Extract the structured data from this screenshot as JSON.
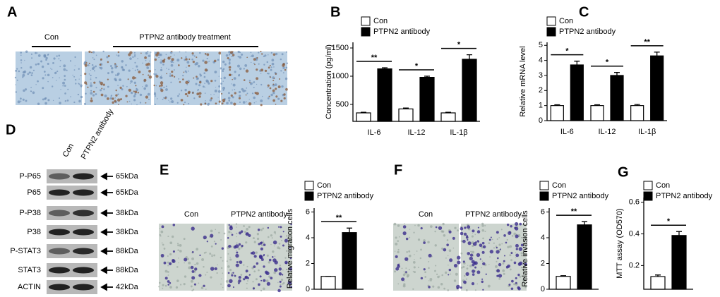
{
  "panel_labels": [
    "A",
    "B",
    "C",
    "D",
    "E",
    "F",
    "G"
  ],
  "panel_a": {
    "groups": [
      "Con",
      "PTPN2 antibody treatment"
    ]
  },
  "panel_d": {
    "columns": [
      "Con",
      "PTPN2 antibody"
    ],
    "rows": [
      {
        "name": "P-P65",
        "size": "65kDa"
      },
      {
        "name": "P65",
        "size": "65kDa"
      },
      {
        "name": "P-P38",
        "size": "38kDa"
      },
      {
        "name": "P38",
        "size": "38kDa"
      },
      {
        "name": "P-STAT3",
        "size": "88kDa"
      },
      {
        "name": "STAT3",
        "size": "88kDa"
      },
      {
        "name": "ACTIN",
        "size": "42kDa"
      }
    ]
  },
  "panel_e": {
    "images": [
      "Con",
      "PTPN2 antibody"
    ]
  },
  "panel_f": {
    "images": [
      "Con",
      "PTPN2 antibody"
    ]
  },
  "chart_data": [
    {
      "type": "bar",
      "ylabel": "Concentration (pg/ml)",
      "categories": [
        "IL-6",
        "IL-12",
        "IL-1β"
      ],
      "series": [
        {
          "name": "Con",
          "color": "#ffffff",
          "values": [
            350,
            420,
            350
          ],
          "errors": [
            10,
            15,
            10
          ]
        },
        {
          "name": "PTPN2 antibody",
          "color": "#000000",
          "values": [
            1130,
            980,
            1300
          ],
          "errors": [
            20,
            20,
            80
          ]
        }
      ],
      "significance": [
        "**",
        "*",
        "*"
      ],
      "ylim": [
        200,
        1600
      ],
      "yticks": [
        500,
        1000,
        1500
      ]
    },
    {
      "type": "bar",
      "ylabel": "Relative mRNA level",
      "categories": [
        "IL-6",
        "IL-12",
        "IL-1β"
      ],
      "series": [
        {
          "name": "Con",
          "color": "#ffffff",
          "values": [
            1,
            1,
            1
          ],
          "errors": [
            0.05,
            0.05,
            0.07
          ]
        },
        {
          "name": "PTPN2 antibody",
          "color": "#000000",
          "values": [
            3.7,
            3.0,
            4.3
          ],
          "errors": [
            0.25,
            0.2,
            0.25
          ]
        }
      ],
      "significance": [
        "*",
        "*",
        "**"
      ],
      "ylim": [
        0,
        5.2
      ],
      "yticks": [
        0,
        1,
        2,
        3,
        4,
        5
      ]
    },
    {
      "type": "bar",
      "ylabel": "Relative migration cells",
      "series": [
        {
          "name": "Con",
          "color": "#ffffff",
          "values": [
            1
          ],
          "errors": [
            0
          ]
        },
        {
          "name": "PTPN2 antibody",
          "color": "#000000",
          "values": [
            4.4
          ],
          "errors": [
            0.35
          ]
        }
      ],
      "significance": [
        "**"
      ],
      "ylim": [
        0,
        6.3
      ],
      "yticks": [
        0,
        2,
        4,
        6
      ]
    },
    {
      "type": "bar",
      "ylabel": "Relative invasion cells",
      "series": [
        {
          "name": "Con",
          "color": "#ffffff",
          "values": [
            1
          ],
          "errors": [
            0.05
          ]
        },
        {
          "name": "PTPN2 antibody",
          "color": "#000000",
          "values": [
            5.0
          ],
          "errors": [
            0.25
          ]
        }
      ],
      "significance": [
        "**"
      ],
      "ylim": [
        0,
        6.3
      ],
      "yticks": [
        0,
        2,
        4,
        6
      ]
    },
    {
      "type": "bar",
      "ylabel": "MTT assay (OD570)",
      "series": [
        {
          "name": "Con",
          "color": "#ffffff",
          "values": [
            0.13
          ],
          "errors": [
            0.01
          ]
        },
        {
          "name": "PTPN2 antibody",
          "color": "#000000",
          "values": [
            0.39
          ],
          "errors": [
            0.025
          ]
        }
      ],
      "significance": [
        "*"
      ],
      "ylim": [
        0.05,
        0.63
      ],
      "yticks": [
        0.2,
        0.4,
        0.6
      ]
    }
  ]
}
